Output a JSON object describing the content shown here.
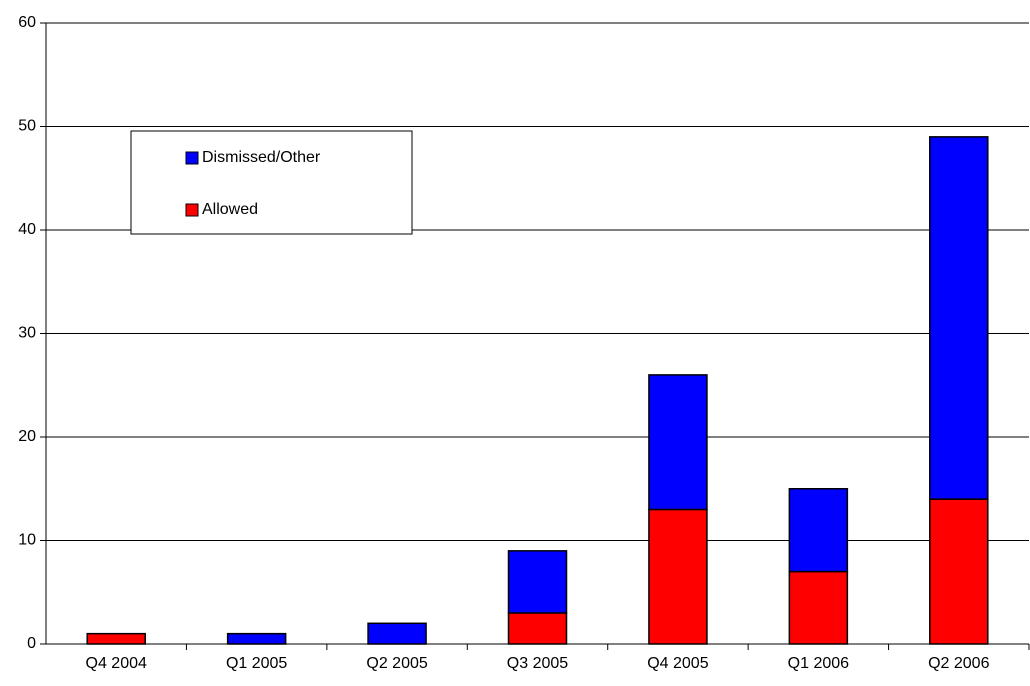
{
  "chart_data": {
    "type": "stacked_bar",
    "categories": [
      "Q4 2004",
      "Q1 2005",
      "Q2 2005",
      "Q3 2005",
      "Q4 2005",
      "Q1 2006",
      "Q2 2006"
    ],
    "series": [
      {
        "name": "Allowed",
        "color": "#ff0000",
        "values": [
          1,
          0,
          0,
          3,
          13,
          7,
          14
        ]
      },
      {
        "name": "Dismissed/Other",
        "color": "#0000ff",
        "values": [
          0,
          1,
          2,
          6,
          13,
          8,
          35
        ]
      }
    ],
    "ylim": [
      0,
      60
    ],
    "yticks": [
      0,
      10,
      20,
      30,
      40,
      50,
      60
    ],
    "grid": true
  }
}
